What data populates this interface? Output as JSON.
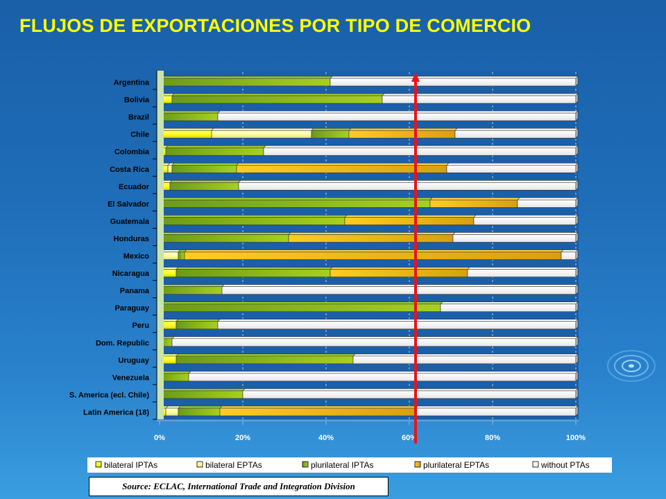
{
  "title": "FLUJOS DE EXPORTACIONES POR TIPO DE COMERCIO",
  "source": "Source: ECLAC, International Trade and Integration Division",
  "colors": {
    "bilateral IPTAs": "#ffff33",
    "bilateral EPTAs": "#ffffaa",
    "plurilateral IPTAs": "#8ab81e",
    "plurilateral EPTAs": "#f5c21a",
    "without PTAs": "#ffffff",
    "plot_background": "#1a5fa8",
    "axis_panel": "#c8e3b0",
    "reference_line": "#e8141c"
  },
  "chart_data": {
    "type": "bar",
    "orientation": "horizontal",
    "stacked": "percent",
    "categories": [
      "Argentina",
      "Bolivia",
      "Brazil",
      "Chile",
      "Colombia",
      "Costa Rica",
      "Ecuador",
      "El Salvador",
      "Guatemala",
      "Honduras",
      "Mexico",
      "Nicaragua",
      "Panama",
      "Paraguay",
      "Peru",
      "Dom. Republic",
      "Uruguay",
      "Venezuela",
      "S. America (ecl. Chile)",
      "Latin America (18)"
    ],
    "series": [
      {
        "name": "bilateral IPTAs",
        "values": [
          0,
          3,
          0,
          12.5,
          1.5,
          2,
          2.5,
          0,
          0,
          0,
          0.5,
          4,
          0,
          0,
          4,
          0,
          4,
          0,
          0.5,
          1.5
        ]
      },
      {
        "name": "bilateral EPTAs",
        "values": [
          0,
          0,
          0,
          24,
          0,
          1,
          0,
          0,
          0,
          0,
          4,
          0,
          0,
          0,
          0,
          0,
          0,
          0,
          0,
          3
        ]
      },
      {
        "name": "plurilateral IPTAs",
        "values": [
          41,
          50.5,
          14,
          9,
          23.5,
          15.5,
          16.5,
          65,
          44.5,
          31,
          1.5,
          37,
          15,
          67.5,
          10,
          3,
          42.5,
          7,
          19.5,
          10
        ]
      },
      {
        "name": "plurilateral EPTAs",
        "values": [
          0,
          0,
          0,
          25.5,
          0,
          50.5,
          0,
          21,
          31,
          39.5,
          90.5,
          33,
          0,
          0,
          0,
          0,
          0,
          0,
          0,
          47
        ]
      },
      {
        "name": "without PTAs",
        "values": [
          59,
          46.5,
          86,
          29,
          75,
          31,
          81,
          14,
          24.5,
          29.5,
          3.5,
          26,
          85,
          32.5,
          86,
          97,
          53.5,
          93,
          80,
          38.5
        ]
      }
    ],
    "xlim": [
      0,
      100
    ],
    "xticks": [
      "0%",
      "20%",
      "40%",
      "60%",
      "80%",
      "100%"
    ],
    "reference_line_x": 61.5,
    "legend_position": "bottom",
    "grid": "vertical dashed"
  }
}
